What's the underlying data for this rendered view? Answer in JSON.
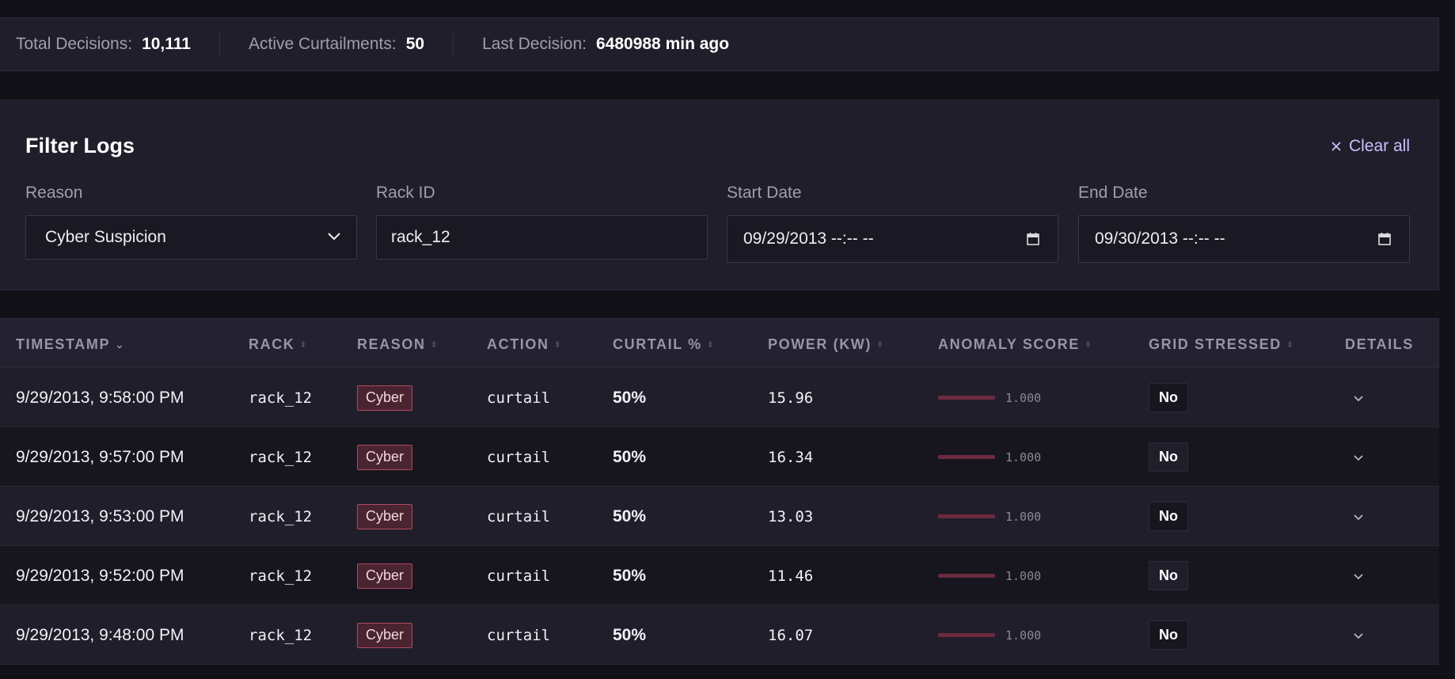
{
  "stats": {
    "total_label": "Total Decisions:",
    "total_value": "10,111",
    "active_label": "Active Curtailments:",
    "active_value": "50",
    "last_label": "Last Decision:",
    "last_value": "6480988 min ago"
  },
  "filters": {
    "title": "Filter Logs",
    "clear_all": "Clear all",
    "reason_label": "Reason",
    "reason_value": "Cyber Suspicion",
    "rack_label": "Rack ID",
    "rack_value": "rack_12",
    "start_label": "Start Date",
    "start_value": "09/29/2013 --:-- --",
    "end_label": "End Date",
    "end_value": "09/30/2013 --:-- --"
  },
  "table": {
    "headers": {
      "timestamp": "TIMESTAMP",
      "rack": "RACK",
      "reason": "REASON",
      "action": "ACTION",
      "curtail": "CURTAIL %",
      "power": "POWER (KW)",
      "anomaly": "ANOMALY SCORE",
      "grid": "GRID STRESSED",
      "details": "DETAILS"
    },
    "rows": [
      {
        "timestamp": "9/29/2013, 9:58:00 PM",
        "rack": "rack_12",
        "reason": "Cyber",
        "action": "curtail",
        "curtail": "50%",
        "power": "15.96",
        "anomaly": "1.000",
        "grid": "No"
      },
      {
        "timestamp": "9/29/2013, 9:57:00 PM",
        "rack": "rack_12",
        "reason": "Cyber",
        "action": "curtail",
        "curtail": "50%",
        "power": "16.34",
        "anomaly": "1.000",
        "grid": "No"
      },
      {
        "timestamp": "9/29/2013, 9:53:00 PM",
        "rack": "rack_12",
        "reason": "Cyber",
        "action": "curtail",
        "curtail": "50%",
        "power": "13.03",
        "anomaly": "1.000",
        "grid": "No"
      },
      {
        "timestamp": "9/29/2013, 9:52:00 PM",
        "rack": "rack_12",
        "reason": "Cyber",
        "action": "curtail",
        "curtail": "50%",
        "power": "11.46",
        "anomaly": "1.000",
        "grid": "No"
      },
      {
        "timestamp": "9/29/2013, 9:48:00 PM",
        "rack": "rack_12",
        "reason": "Cyber",
        "action": "curtail",
        "curtail": "50%",
        "power": "16.07",
        "anomaly": "1.000",
        "grid": "No"
      }
    ]
  },
  "colors": {
    "accent": "#c8c2ff",
    "badge_border": "#b04a5f",
    "badge_bg": "#4a2430"
  }
}
